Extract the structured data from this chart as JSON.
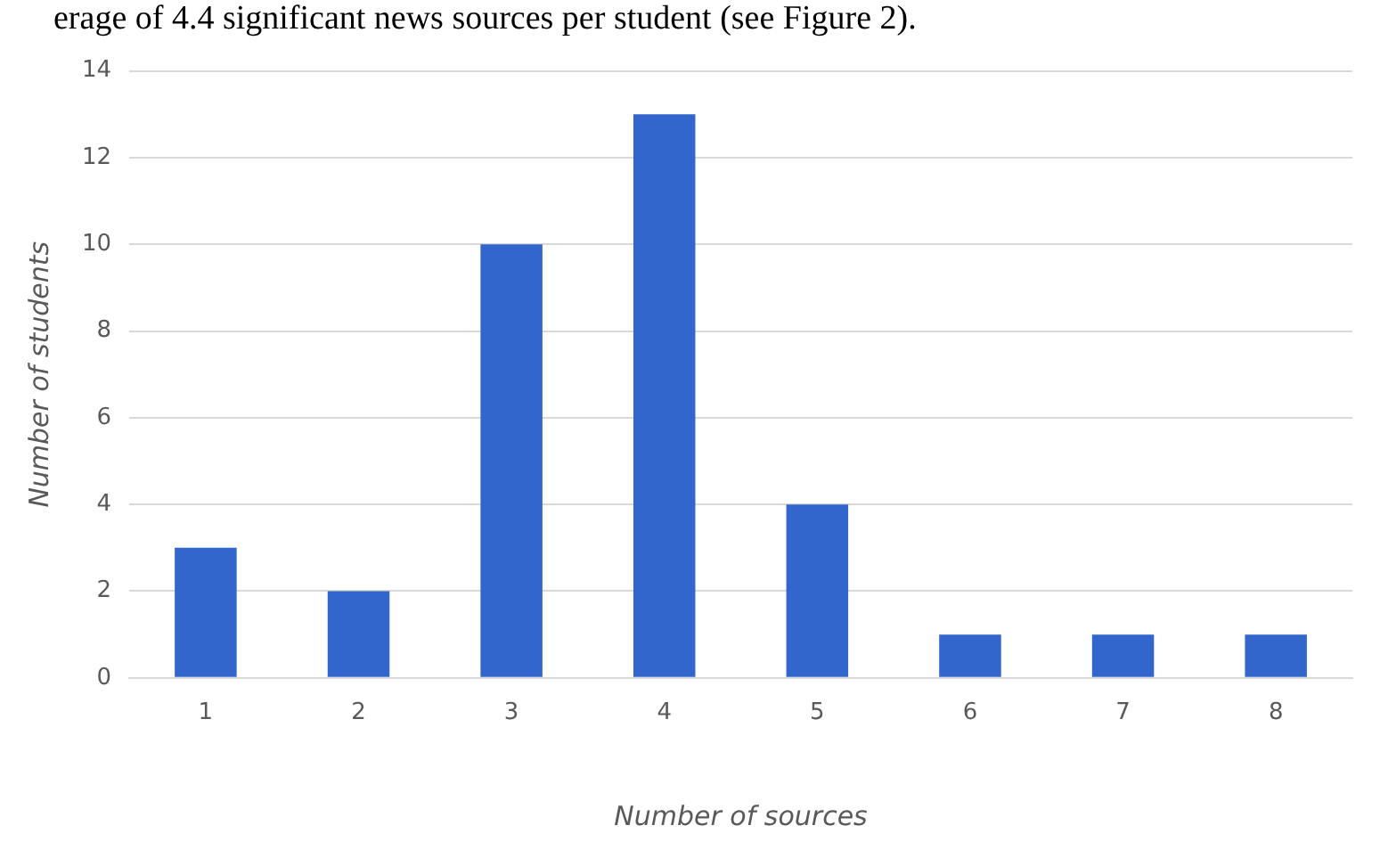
{
  "chart_data": {
    "type": "bar",
    "xlabel": "Number of sources",
    "ylabel": "Number of students",
    "annotations": [
      "erage of 4.4 significant news sources per student (see Figure 2)."
    ],
    "categories": [
      "1",
      "2",
      "3",
      "4",
      "5",
      "6",
      "7",
      "8"
    ],
    "values": [
      3,
      2,
      10,
      13,
      4,
      1,
      1,
      1
    ],
    "color": "#3366cc",
    "ylim": [
      0,
      14
    ],
    "yticks": [
      0,
      2,
      4,
      6,
      8,
      10,
      12,
      14
    ],
    "grid": "y"
  }
}
